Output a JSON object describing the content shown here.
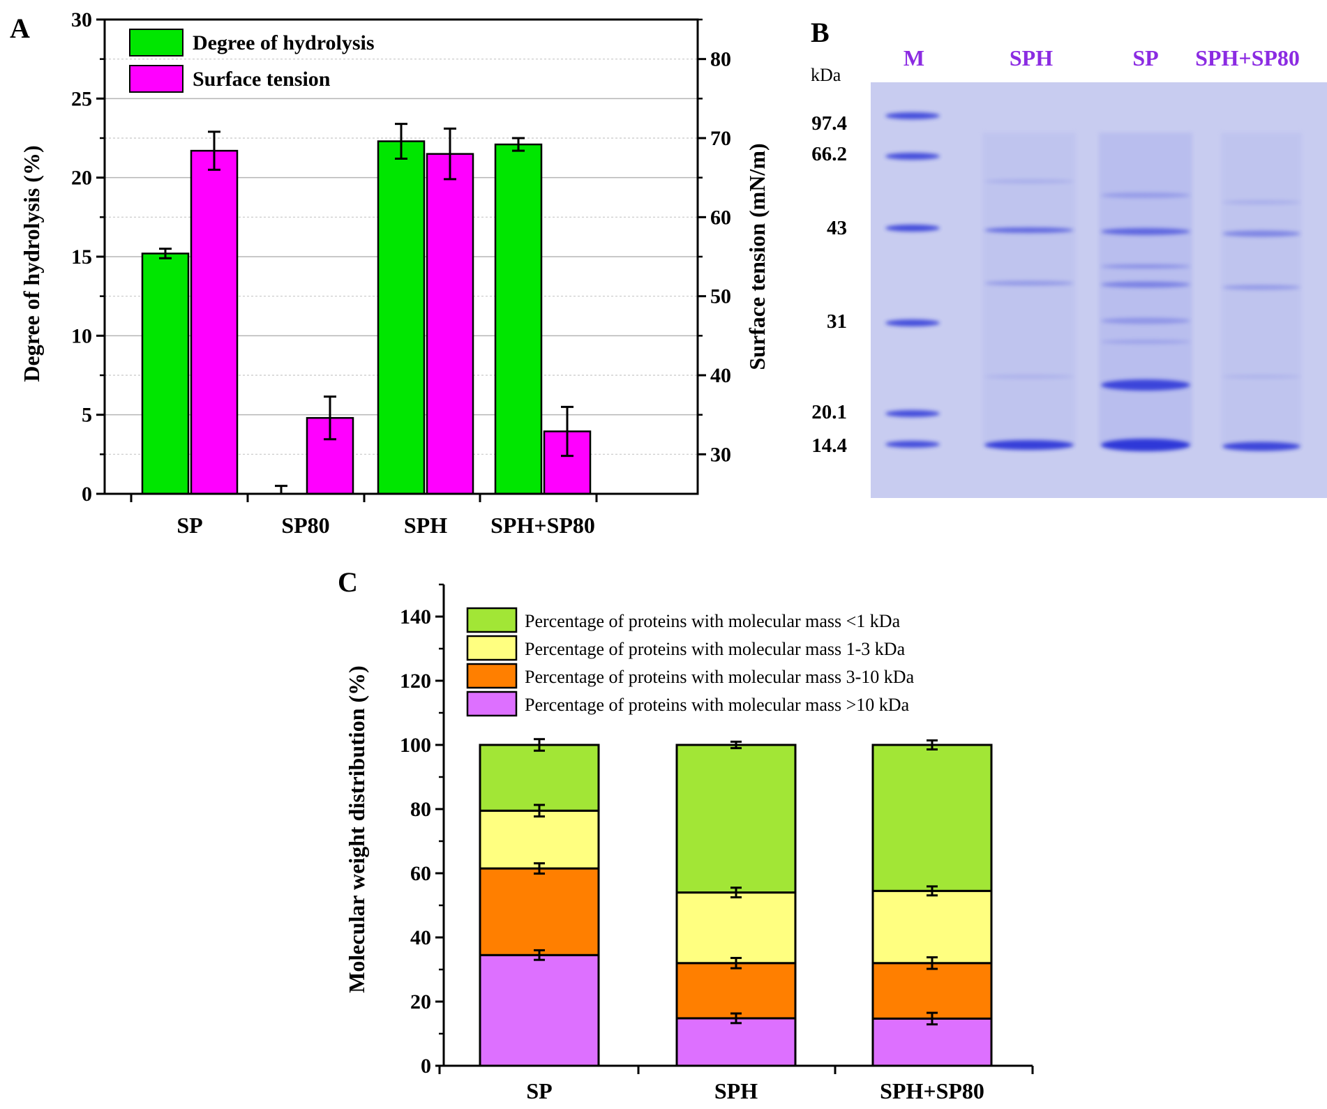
{
  "panelA": {
    "letter": "A",
    "chart_data": {
      "type": "bar",
      "title": "",
      "categories": [
        "SP",
        "SP80",
        "SPH",
        "SPH+SP80"
      ],
      "left_axis": {
        "label": "Degree of hydrolysis (%)",
        "ylim": [
          0,
          30
        ],
        "ticks": [
          "0",
          "5",
          "10",
          "15",
          "20",
          "25",
          "30"
        ],
        "tick_values": [
          0,
          5,
          10,
          15,
          20,
          25,
          30
        ]
      },
      "right_axis": {
        "label": "Surface tension (mN/m)",
        "ylim": [
          25,
          85
        ],
        "ticks": [
          "30",
          "40",
          "50",
          "60",
          "70",
          "80"
        ],
        "tick_values": [
          30,
          40,
          50,
          60,
          70,
          80
        ]
      },
      "series": [
        {
          "name": "Degree of hydrolysis",
          "axis": "left",
          "color": "#00E600",
          "values": [
            15.2,
            0,
            22.3,
            22.1
          ],
          "errors": [
            0.3,
            0.5,
            1.1,
            0.4
          ]
        },
        {
          "name": "Surface tension",
          "axis": "right",
          "color": "#FF00FF",
          "values": [
            68.4,
            34.6,
            68.0,
            32.9
          ],
          "errors": [
            2.4,
            2.7,
            3.2,
            3.1
          ]
        }
      ],
      "legend_position": "top-left",
      "grid": true
    }
  },
  "panelB": {
    "letter": "B",
    "unit": "kDa",
    "lanes": [
      "M",
      "SPH",
      "SP",
      "SPH+SP80"
    ],
    "markers": [
      "97.4",
      "66.2",
      "43",
      "31",
      "20.1",
      "14.4"
    ],
    "lane_label_color": "#8B2BE2",
    "gel_color": "#C8CCF0",
    "band_color": "#2E39D8"
  },
  "panelC": {
    "letter": "C",
    "chart_data": {
      "type": "bar",
      "stacked": true,
      "categories": [
        "SP",
        "SPH",
        "SPH+SP80"
      ],
      "ylabel": "Molecular weight distribution (%)",
      "ylim": [
        0,
        150
      ],
      "yticks": [
        "0",
        "20",
        "40",
        "60",
        "80",
        "100",
        "120",
        "140"
      ],
      "ytick_values": [
        0,
        20,
        40,
        60,
        80,
        100,
        120,
        140
      ],
      "series": [
        {
          "name": "Percentage of proteins with molecular mass >10 kDa",
          "color": "#DD70FF",
          "values": [
            34.5,
            14.8,
            14.7
          ],
          "errors": [
            1.5,
            1.5,
            1.8
          ]
        },
        {
          "name": "Percentage of proteins with molecular mass 3-10 kDa",
          "color": "#FF7F00",
          "values": [
            27.0,
            17.2,
            17.3
          ],
          "errors": [
            1.6,
            1.6,
            1.8
          ]
        },
        {
          "name": "Percentage of proteins with molecular mass 1-3 kDa",
          "color": "#FFFF80",
          "values": [
            18.0,
            22.0,
            22.5
          ],
          "errors": [
            1.8,
            1.5,
            1.4
          ]
        },
        {
          "name": "Percentage of proteins with molecular mass <1 kDa",
          "color": "#A2E636",
          "values": [
            20.5,
            46.0,
            45.5
          ],
          "errors": [
            1.8,
            1.0,
            1.4
          ]
        }
      ],
      "legend_order": [
        3,
        2,
        1,
        0
      ],
      "legend_position": "top"
    }
  }
}
